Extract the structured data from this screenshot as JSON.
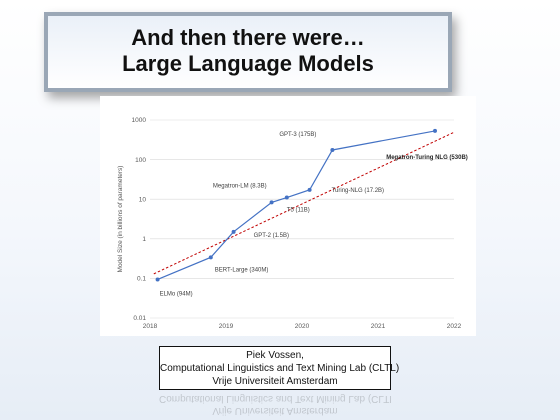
{
  "slide": {
    "title_line1": "And then there were…",
    "title_line2": "Large Language Models"
  },
  "credits": {
    "name": "Piek Vossen,",
    "lab": "Computational Linguistics and Text Mining Lab (CLTL)",
    "university": "Vrije Universiteit Amsterdam"
  },
  "chart_data": {
    "type": "line",
    "title": "",
    "xlabel": "",
    "ylabel": "Model Size (in billions of parameters)",
    "xlim": [
      2018,
      2022
    ],
    "ylim": [
      0.01,
      1000
    ],
    "y_scale": "log",
    "x_ticks": [
      "2018",
      "2019",
      "2020",
      "2021",
      "2022"
    ],
    "y_ticks": [
      "0.01",
      "0.1",
      "1",
      "10",
      "100",
      "1000"
    ],
    "grid": "horizontal",
    "legend": "none",
    "series_color": "#4472c4",
    "trend_color": "#c00000",
    "series": [
      {
        "points": [
          {
            "label": "ELMo (94M)",
            "x": 2018.1,
            "y": 0.094
          },
          {
            "label": "BERT-Large (340M)",
            "x": 2018.8,
            "y": 0.34
          },
          {
            "label": "GPT-2 (1.5B)",
            "x": 2019.1,
            "y": 1.5
          },
          {
            "label": "Megatron-LM (8.3B)",
            "x": 2019.6,
            "y": 8.3
          },
          {
            "label": "T5 (11B)",
            "x": 2019.8,
            "y": 11
          },
          {
            "label": "Turing-NLG (17.2B)",
            "x": 2020.1,
            "y": 17.2
          },
          {
            "label": "GPT-3 (175B)",
            "x": 2020.4,
            "y": 175
          },
          {
            "label": "Megatron-Turing NLG (530B)",
            "x": 2021.75,
            "y": 530
          }
        ]
      }
    ],
    "trendline": {
      "x": [
        2018.05,
        2022.0
      ],
      "y": [
        0.13,
        490
      ]
    }
  }
}
